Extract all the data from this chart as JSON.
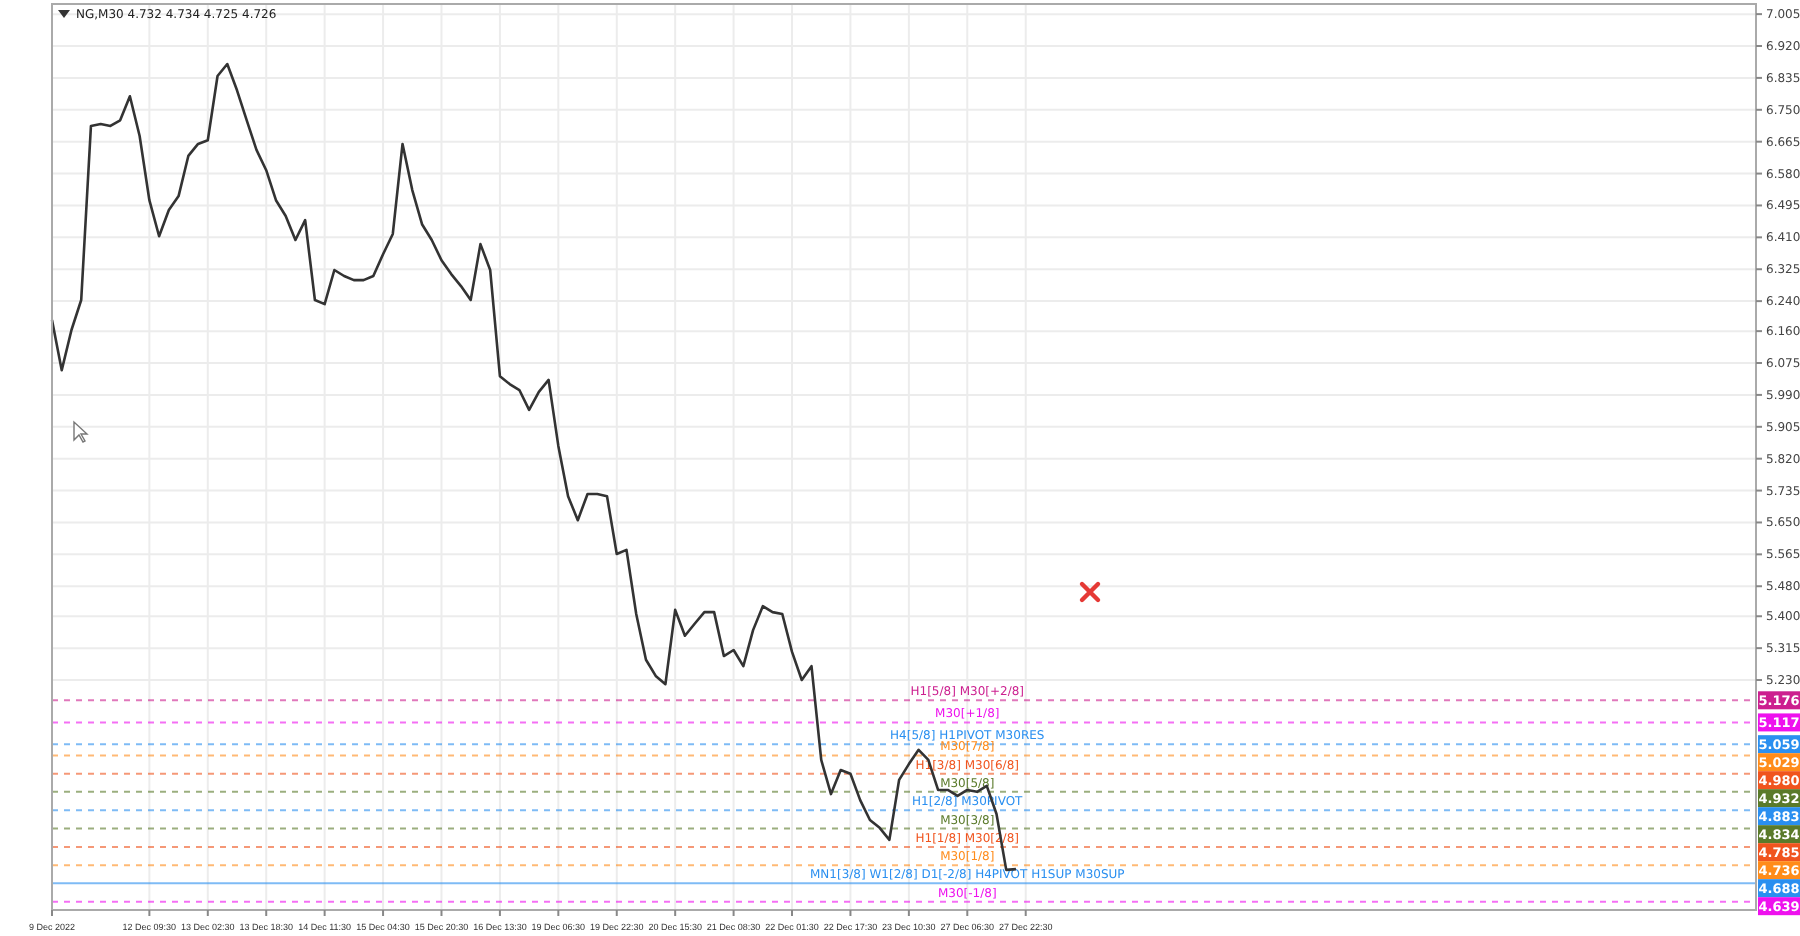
{
  "chart_data": {
    "type": "line",
    "title": "NG,M30  4.732 4.734 4.725 4.726",
    "categories": [
      "9 Dec 2022",
      null,
      null,
      null,
      null,
      null,
      null,
      null,
      null,
      null,
      "12 Dec 09:30",
      null,
      null,
      null,
      null,
      null,
      "13 Dec 02:30",
      null,
      null,
      null,
      null,
      null,
      "13 Dec 18:30",
      null,
      null,
      null,
      null,
      null,
      "14 Dec 11:30",
      null,
      null,
      null,
      null,
      null,
      "15 Dec 04:30",
      null,
      null,
      null,
      null,
      null,
      "15 Dec 20:30",
      null,
      null,
      null,
      null,
      null,
      "16 Dec 13:30",
      null,
      null,
      null,
      null,
      null,
      "19 Dec 06:30",
      null,
      null,
      null,
      null,
      null,
      "19 Dec 22:30",
      null,
      null,
      null,
      null,
      null,
      "20 Dec 15:30",
      null,
      null,
      null,
      null,
      null,
      "21 Dec 08:30",
      null,
      null,
      null,
      null,
      null,
      "22 Dec 01:30",
      null,
      null,
      null,
      null,
      null,
      "22 Dec 17:30",
      null,
      null,
      null,
      null,
      null,
      "23 Dec 10:30",
      null,
      null,
      null,
      null,
      null,
      "27 Dec 06:30",
      null,
      null,
      null,
      null,
      null,
      "27 Dec 22:30",
      null,
      null,
      null,
      null,
      null,
      null,
      null,
      null,
      null,
      null,
      null,
      null,
      null,
      null,
      null,
      null,
      null,
      null,
      null,
      null,
      null,
      null,
      null,
      null,
      null,
      null,
      null,
      null,
      null,
      null,
      null,
      null,
      null,
      null,
      null,
      null,
      null,
      null,
      null,
      null,
      null,
      null,
      null,
      null,
      null,
      null,
      null,
      null,
      null,
      null,
      null,
      null,
      null,
      null,
      null,
      null,
      null,
      null,
      null,
      null,
      null,
      null,
      null,
      null,
      null,
      null,
      null,
      null,
      null,
      null,
      null,
      null,
      null,
      null,
      null
    ],
    "series": [
      {
        "color": "#333333",
        "values": [
          6.19,
          6.056,
          6.163,
          6.243,
          6.707,
          6.712,
          6.707,
          6.722,
          6.786,
          6.68,
          6.509,
          6.413,
          6.483,
          6.52,
          6.627,
          6.659,
          6.669,
          6.84,
          6.872,
          6.802,
          6.722,
          6.643,
          6.589,
          6.509,
          6.467,
          6.403,
          6.456,
          6.243,
          6.232,
          6.323,
          6.307,
          6.296,
          6.296,
          6.307,
          6.365,
          6.419,
          6.659,
          6.536,
          6.445,
          6.403,
          6.349,
          6.312,
          6.28,
          6.243,
          6.392,
          6.323,
          6.04,
          6.019,
          6.003,
          5.95,
          5.998,
          6.03,
          5.854,
          5.72,
          5.656,
          5.726,
          5.726,
          5.72,
          5.566,
          5.577,
          5.406,
          5.284,
          5.241,
          5.219,
          5.417,
          5.348,
          5.38,
          5.411,
          5.411,
          5.294,
          5.31,
          5.267,
          5.363,
          5.427,
          5.411,
          5.406,
          5.305,
          5.23,
          5.267,
          5.017,
          4.926,
          4.99,
          4.98,
          4.91,
          4.857,
          4.836,
          4.804,
          4.964,
          5.006,
          5.044,
          5.017,
          4.937,
          4.937,
          4.921,
          4.937,
          4.932,
          4.948,
          4.873,
          4.724,
          4.726,
          null,
          null,
          null,
          null,
          null,
          null,
          null,
          null,
          null,
          null,
          null,
          null,
          null,
          null,
          null,
          null,
          null,
          null,
          null,
          null,
          null,
          null,
          null,
          null,
          null,
          null,
          null,
          null,
          null,
          null,
          null,
          null,
          null,
          null,
          null,
          null,
          null,
          null,
          null,
          null,
          null,
          null,
          null,
          null,
          null,
          null,
          null,
          null,
          null,
          null,
          null,
          null,
          null,
          null,
          null,
          null,
          null,
          null,
          null,
          null,
          null,
          null,
          null,
          null,
          null,
          null,
          null,
          null,
          null,
          null,
          null,
          null,
          null,
          null,
          null,
          null
        ]
      }
    ],
    "ylim": [
      4.617,
      7.032
    ],
    "yticks": [
      {
        "value": 7.005,
        "label": "7.005"
      },
      {
        "value": 6.92,
        "label": "6.920"
      },
      {
        "value": 6.835,
        "label": "6.835"
      },
      {
        "value": 6.75,
        "label": "6.750"
      },
      {
        "value": 6.665,
        "label": "6.665"
      },
      {
        "value": 6.58,
        "label": "6.580"
      },
      {
        "value": 6.495,
        "label": "6.495"
      },
      {
        "value": 6.41,
        "label": "6.410"
      },
      {
        "value": 6.325,
        "label": "6.325"
      },
      {
        "value": 6.24,
        "label": "6.240"
      },
      {
        "value": 6.16,
        "label": "6.160"
      },
      {
        "value": 6.075,
        "label": "6.075"
      },
      {
        "value": 5.99,
        "label": "5.990"
      },
      {
        "value": 5.905,
        "label": "5.905"
      },
      {
        "value": 5.82,
        "label": "5.820"
      },
      {
        "value": 5.735,
        "label": "5.735"
      },
      {
        "value": 5.65,
        "label": "5.650"
      },
      {
        "value": 5.565,
        "label": "5.565"
      },
      {
        "value": 5.48,
        "label": "5.480"
      },
      {
        "value": 5.4,
        "label": "5.400"
      },
      {
        "value": 5.315,
        "label": "5.315"
      },
      {
        "value": 5.23,
        "label": "5.230"
      }
    ],
    "grid": true,
    "ref_lines": [
      {
        "axis": "y",
        "value": 5.176,
        "label": "5.176",
        "color": "#cc1f8f",
        "line_style": "dashed"
      },
      {
        "axis": "y",
        "value": 5.117,
        "label": "5.117",
        "color": "#ee11ee",
        "line_style": "dashed"
      },
      {
        "axis": "y",
        "value": 5.059,
        "label": "5.059",
        "color": "#2a8ff0",
        "line_style": "dashed"
      },
      {
        "axis": "y",
        "value": 5.029,
        "label": "5.029",
        "color": "#ff8c1a",
        "line_style": "dashed"
      },
      {
        "axis": "y",
        "value": 4.98,
        "label": "4.980",
        "color": "#f0541e",
        "line_style": "dashed"
      },
      {
        "axis": "y",
        "value": 4.932,
        "label": "4.932",
        "color": "#5a7a2a",
        "line_style": "dashed"
      },
      {
        "axis": "y",
        "value": 4.883,
        "label": "4.883",
        "color": "#2a8ff0",
        "line_style": "dashed"
      },
      {
        "axis": "y",
        "value": 4.834,
        "label": "4.834",
        "color": "#5a7a2a",
        "line_style": "dashed"
      },
      {
        "axis": "y",
        "value": 4.785,
        "label": "4.785",
        "color": "#f0541e",
        "line_style": "dashed"
      },
      {
        "axis": "y",
        "value": 4.736,
        "label": "4.736",
        "color": "#ff8c1a",
        "line_style": "dashed"
      },
      {
        "axis": "y",
        "value": 4.688,
        "label": "4.688",
        "color": "#2a8ff0",
        "line_style": "solid"
      },
      {
        "axis": "y",
        "value": 4.639,
        "label": "4.639",
        "color": "#ee11ee",
        "line_style": "dashed"
      }
    ],
    "annotations": [
      {
        "text": "H1[5/8] M30[+2/8]",
        "y": 5.176
      },
      {
        "text": "M30[+1/8]",
        "y": 5.117
      },
      {
        "text": "H4[5/8] H1PIVOT M30RES",
        "y": 5.059
      },
      {
        "text": "M30[7/8]",
        "y": 5.029
      },
      {
        "text": "H1[3/8] M30[6/8]",
        "y": 4.98
      },
      {
        "text": "M30[5/8]",
        "y": 4.932
      },
      {
        "text": "H1[2/8] M30PIVOT",
        "y": 4.883
      },
      {
        "text": "M30[3/8]",
        "y": 4.834
      },
      {
        "text": "H1[1/8] M30[2/8]",
        "y": 4.785
      },
      {
        "text": "M30[1/8]",
        "y": 4.736
      },
      {
        "text": "MN1[3/8] W1[2/8] D1[-2/8] H4PIVOT H1SUP M30SUP",
        "y": 4.688
      },
      {
        "text": "M30[-1/8]",
        "y": 4.639
      }
    ]
  }
}
